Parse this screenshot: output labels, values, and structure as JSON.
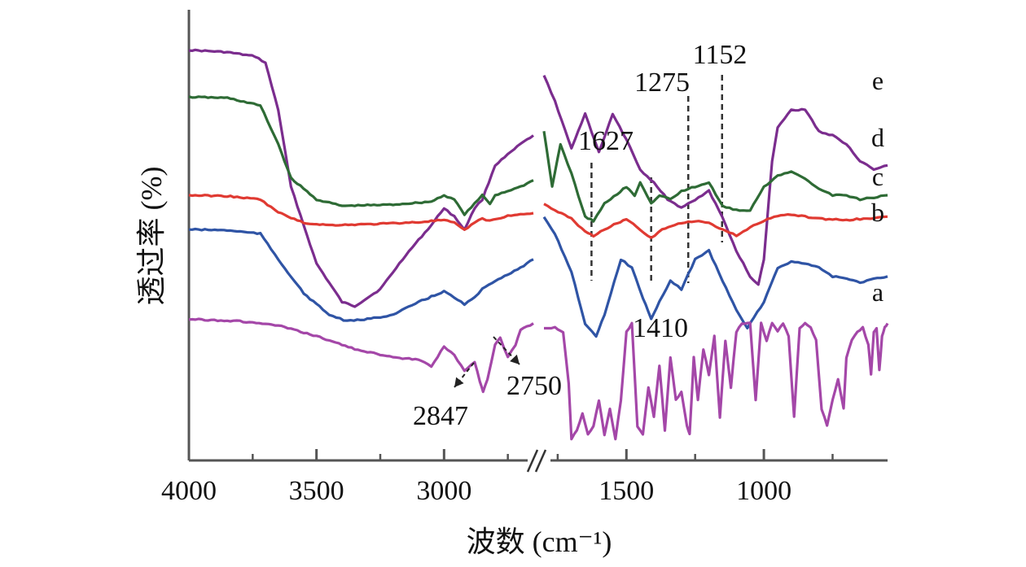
{
  "chart_data": {
    "type": "line",
    "title": "",
    "xlabel": "波数 (cm⁻¹)",
    "ylabel": "透过率 (%)",
    "x_axis_reversed": true,
    "x_axis_break": "between 2700 and 1800",
    "x_ticks": [
      "4000",
      "3500",
      "3000",
      "1500",
      "1000"
    ],
    "xlim_left": [
      4000,
      2650
    ],
    "xlim_right": [
      1800,
      550
    ],
    "grid": false,
    "legend": "inline curve labels at right end",
    "series": [
      {
        "name": "e",
        "color": "#7b2d8e",
        "points_left": [
          [
            4000,
            0.94
          ],
          [
            3850,
            0.935
          ],
          [
            3740,
            0.925
          ],
          [
            3700,
            0.91
          ],
          [
            3650,
            0.8
          ],
          [
            3600,
            0.62
          ],
          [
            3500,
            0.44
          ],
          [
            3400,
            0.35
          ],
          [
            3350,
            0.34
          ],
          [
            3250,
            0.38
          ],
          [
            3150,
            0.46
          ],
          [
            3050,
            0.53
          ],
          [
            3000,
            0.57
          ],
          [
            2960,
            0.55
          ],
          [
            2920,
            0.52
          ],
          [
            2880,
            0.57
          ],
          [
            2850,
            0.59
          ],
          [
            2800,
            0.67
          ],
          [
            2700,
            0.72
          ],
          [
            2650,
            0.74
          ]
        ],
        "points_right": [
          [
            1800,
            0.88
          ],
          [
            1760,
            0.82
          ],
          [
            1700,
            0.71
          ],
          [
            1650,
            0.79
          ],
          [
            1600,
            0.7
          ],
          [
            1550,
            0.79
          ],
          [
            1500,
            0.73
          ],
          [
            1450,
            0.66
          ],
          [
            1400,
            0.63
          ],
          [
            1350,
            0.59
          ],
          [
            1300,
            0.57
          ],
          [
            1250,
            0.59
          ],
          [
            1200,
            0.61
          ],
          [
            1152,
            0.55
          ],
          [
            1100,
            0.47
          ],
          [
            1050,
            0.41
          ],
          [
            1020,
            0.39
          ],
          [
            1000,
            0.45
          ],
          [
            970,
            0.68
          ],
          [
            950,
            0.76
          ],
          [
            900,
            0.8
          ],
          [
            850,
            0.8
          ],
          [
            800,
            0.75
          ],
          [
            750,
            0.74
          ],
          [
            700,
            0.72
          ],
          [
            650,
            0.68
          ],
          [
            600,
            0.66
          ],
          [
            550,
            0.67
          ]
        ]
      },
      {
        "name": "d",
        "color": "#2e6b35",
        "points_left": [
          [
            4000,
            0.83
          ],
          [
            3850,
            0.828
          ],
          [
            3720,
            0.81
          ],
          [
            3650,
            0.72
          ],
          [
            3600,
            0.64
          ],
          [
            3500,
            0.59
          ],
          [
            3400,
            0.575
          ],
          [
            3200,
            0.578
          ],
          [
            3050,
            0.585
          ],
          [
            3000,
            0.6
          ],
          [
            2960,
            0.59
          ],
          [
            2920,
            0.555
          ],
          [
            2880,
            0.58
          ],
          [
            2850,
            0.6
          ],
          [
            2820,
            0.58
          ],
          [
            2800,
            0.6
          ],
          [
            2700,
            0.62
          ],
          [
            2650,
            0.635
          ]
        ],
        "points_right": [
          [
            1800,
            0.75
          ],
          [
            1770,
            0.62
          ],
          [
            1740,
            0.72
          ],
          [
            1700,
            0.65
          ],
          [
            1650,
            0.55
          ],
          [
            1620,
            0.54
          ],
          [
            1580,
            0.58
          ],
          [
            1500,
            0.62
          ],
          [
            1470,
            0.6
          ],
          [
            1450,
            0.63
          ],
          [
            1410,
            0.58
          ],
          [
            1380,
            0.6
          ],
          [
            1340,
            0.59
          ],
          [
            1300,
            0.61
          ],
          [
            1250,
            0.62
          ],
          [
            1200,
            0.63
          ],
          [
            1150,
            0.575
          ],
          [
            1100,
            0.565
          ],
          [
            1050,
            0.565
          ],
          [
            1000,
            0.62
          ],
          [
            950,
            0.645
          ],
          [
            900,
            0.655
          ],
          [
            850,
            0.64
          ],
          [
            800,
            0.615
          ],
          [
            750,
            0.6
          ],
          [
            700,
            0.6
          ],
          [
            650,
            0.59
          ],
          [
            550,
            0.6
          ]
        ]
      },
      {
        "name": "c",
        "color": "#e03a32",
        "points_left": [
          [
            4000,
            0.6
          ],
          [
            3850,
            0.598
          ],
          [
            3720,
            0.59
          ],
          [
            3650,
            0.56
          ],
          [
            3550,
            0.535
          ],
          [
            3450,
            0.53
          ],
          [
            3300,
            0.532
          ],
          [
            3100,
            0.537
          ],
          [
            3000,
            0.542
          ],
          [
            2960,
            0.535
          ],
          [
            2920,
            0.518
          ],
          [
            2880,
            0.537
          ],
          [
            2850,
            0.545
          ],
          [
            2820,
            0.54
          ],
          [
            2750,
            0.552
          ],
          [
            2650,
            0.558
          ]
        ],
        "points_right": [
          [
            1800,
            0.58
          ],
          [
            1760,
            0.565
          ],
          [
            1700,
            0.545
          ],
          [
            1650,
            0.515
          ],
          [
            1620,
            0.505
          ],
          [
            1580,
            0.52
          ],
          [
            1500,
            0.545
          ],
          [
            1450,
            0.52
          ],
          [
            1410,
            0.5
          ],
          [
            1370,
            0.52
          ],
          [
            1300,
            0.535
          ],
          [
            1250,
            0.54
          ],
          [
            1200,
            0.535
          ],
          [
            1150,
            0.52
          ],
          [
            1100,
            0.505
          ],
          [
            1050,
            0.525
          ],
          [
            1000,
            0.54
          ],
          [
            950,
            0.552
          ],
          [
            900,
            0.555
          ],
          [
            850,
            0.55
          ],
          [
            800,
            0.545
          ],
          [
            700,
            0.542
          ],
          [
            600,
            0.547
          ],
          [
            550,
            0.55
          ]
        ]
      },
      {
        "name": "b",
        "color": "#2f54a5",
        "points_left": [
          [
            4000,
            0.52
          ],
          [
            3850,
            0.518
          ],
          [
            3720,
            0.51
          ],
          [
            3650,
            0.45
          ],
          [
            3550,
            0.37
          ],
          [
            3450,
            0.32
          ],
          [
            3380,
            0.305
          ],
          [
            3300,
            0.31
          ],
          [
            3200,
            0.32
          ],
          [
            3100,
            0.35
          ],
          [
            3000,
            0.375
          ],
          [
            2960,
            0.36
          ],
          [
            2920,
            0.345
          ],
          [
            2880,
            0.36
          ],
          [
            2850,
            0.38
          ],
          [
            2800,
            0.4
          ],
          [
            2700,
            0.43
          ],
          [
            2650,
            0.45
          ]
        ],
        "points_right": [
          [
            1800,
            0.55
          ],
          [
            1760,
            0.51
          ],
          [
            1700,
            0.42
          ],
          [
            1650,
            0.3
          ],
          [
            1610,
            0.27
          ],
          [
            1580,
            0.32
          ],
          [
            1520,
            0.45
          ],
          [
            1480,
            0.43
          ],
          [
            1440,
            0.36
          ],
          [
            1410,
            0.31
          ],
          [
            1380,
            0.35
          ],
          [
            1340,
            0.4
          ],
          [
            1300,
            0.38
          ],
          [
            1250,
            0.45
          ],
          [
            1200,
            0.47
          ],
          [
            1150,
            0.4
          ],
          [
            1100,
            0.33
          ],
          [
            1060,
            0.29
          ],
          [
            1000,
            0.35
          ],
          [
            950,
            0.43
          ],
          [
            900,
            0.445
          ],
          [
            850,
            0.44
          ],
          [
            800,
            0.43
          ],
          [
            750,
            0.41
          ],
          [
            700,
            0.405
          ],
          [
            650,
            0.395
          ],
          [
            600,
            0.405
          ],
          [
            550,
            0.41
          ]
        ]
      },
      {
        "name": "a",
        "color": "#a447a8",
        "points_left": [
          [
            4000,
            0.31
          ],
          [
            3800,
            0.305
          ],
          [
            3650,
            0.295
          ],
          [
            3500,
            0.27
          ],
          [
            3350,
            0.24
          ],
          [
            3200,
            0.22
          ],
          [
            3100,
            0.215
          ],
          [
            3050,
            0.2
          ],
          [
            3000,
            0.245
          ],
          [
            2960,
            0.225
          ],
          [
            2920,
            0.19
          ],
          [
            2880,
            0.21
          ],
          [
            2860,
            0.165
          ],
          [
            2847,
            0.14
          ],
          [
            2830,
            0.17
          ],
          [
            2800,
            0.25
          ],
          [
            2780,
            0.265
          ],
          [
            2750,
            0.22
          ],
          [
            2720,
            0.25
          ],
          [
            2700,
            0.285
          ],
          [
            2650,
            0.3
          ]
        ],
        "points_right": [
          [
            1800,
            0.29
          ],
          [
            1760,
            0.29
          ],
          [
            1730,
            0.28
          ],
          [
            1710,
            0.16
          ],
          [
            1700,
            0.03
          ],
          [
            1680,
            0.05
          ],
          [
            1660,
            0.09
          ],
          [
            1640,
            0.04
          ],
          [
            1620,
            0.06
          ],
          [
            1600,
            0.12
          ],
          [
            1580,
            0.04
          ],
          [
            1560,
            0.1
          ],
          [
            1540,
            0.03
          ],
          [
            1520,
            0.12
          ],
          [
            1500,
            0.28
          ],
          [
            1480,
            0.3
          ],
          [
            1460,
            0.06
          ],
          [
            1440,
            0.04
          ],
          [
            1420,
            0.15
          ],
          [
            1400,
            0.08
          ],
          [
            1380,
            0.2
          ],
          [
            1360,
            0.05
          ],
          [
            1340,
            0.22
          ],
          [
            1320,
            0.12
          ],
          [
            1300,
            0.14
          ],
          [
            1280,
            0.06
          ],
          [
            1270,
            0.04
          ],
          [
            1255,
            0.22
          ],
          [
            1240,
            0.12
          ],
          [
            1220,
            0.24
          ],
          [
            1200,
            0.18
          ],
          [
            1180,
            0.27
          ],
          [
            1160,
            0.08
          ],
          [
            1140,
            0.26
          ],
          [
            1120,
            0.15
          ],
          [
            1100,
            0.28
          ],
          [
            1080,
            0.3
          ],
          [
            1050,
            0.3
          ],
          [
            1030,
            0.12
          ],
          [
            1010,
            0.3
          ],
          [
            990,
            0.26
          ],
          [
            970,
            0.3
          ],
          [
            950,
            0.28
          ],
          [
            930,
            0.3
          ],
          [
            910,
            0.27
          ],
          [
            890,
            0.08
          ],
          [
            870,
            0.29
          ],
          [
            850,
            0.3
          ],
          [
            830,
            0.29
          ],
          [
            810,
            0.26
          ],
          [
            790,
            0.1
          ],
          [
            770,
            0.06
          ],
          [
            750,
            0.12
          ],
          [
            730,
            0.17
          ],
          [
            710,
            0.1
          ],
          [
            700,
            0.22
          ],
          [
            680,
            0.26
          ],
          [
            660,
            0.28
          ],
          [
            640,
            0.29
          ],
          [
            620,
            0.25
          ],
          [
            610,
            0.18
          ],
          [
            600,
            0.28
          ],
          [
            590,
            0.29
          ],
          [
            580,
            0.19
          ],
          [
            570,
            0.27
          ],
          [
            560,
            0.29
          ],
          [
            550,
            0.3
          ]
        ]
      }
    ],
    "reference_lines": [
      1627,
      1410,
      1275,
      1152
    ],
    "annotations": [
      {
        "text": "1627",
        "x": 1627
      },
      {
        "text": "1410",
        "x": 1410
      },
      {
        "text": "1275",
        "x": 1275
      },
      {
        "text": "1152",
        "x": 1152
      },
      {
        "text": "2847",
        "x": 2847
      },
      {
        "text": "2750",
        "x": 2750
      }
    ]
  }
}
